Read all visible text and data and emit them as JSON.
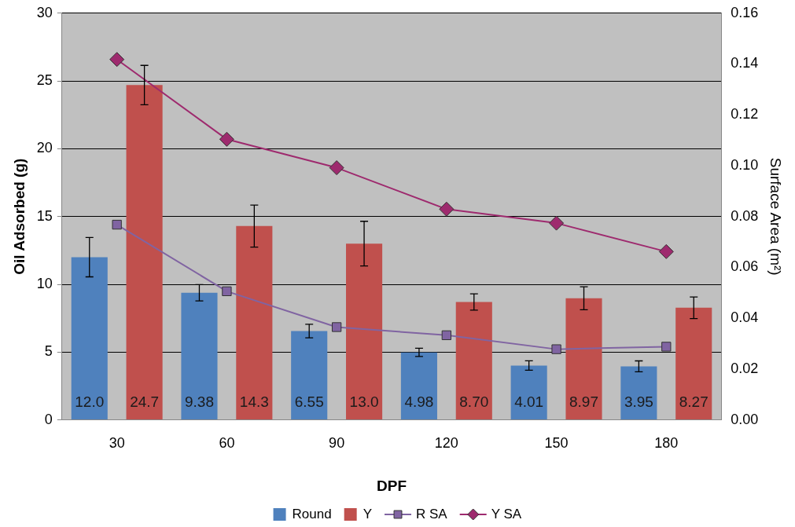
{
  "chart_data": {
    "type": "bar",
    "xlabel": "DPF",
    "ylabel": "Oil Adsorbed (g)",
    "y2label": "Surface Area (m²)",
    "categories": [
      "30",
      "60",
      "90",
      "120",
      "150",
      "180"
    ],
    "series": [
      {
        "name": "Round",
        "color": "#4f81bd",
        "values": [
          12.0,
          9.38,
          6.55,
          4.98,
          4.01,
          3.95
        ],
        "errors": [
          1.45,
          0.6,
          0.5,
          0.3,
          0.35,
          0.4
        ],
        "value_labels": [
          "12.0",
          "9.38",
          "6.55",
          "4.98",
          "4.01",
          "3.95"
        ]
      },
      {
        "name": "Y",
        "color": "#c0504d",
        "values": [
          24.7,
          14.3,
          13.0,
          8.7,
          8.97,
          8.27
        ],
        "errors": [
          1.45,
          1.55,
          1.65,
          0.6,
          0.85,
          0.8
        ],
        "value_labels": [
          "24.7",
          "14.3",
          "13.0",
          "8.70",
          "8.97",
          "8.27"
        ]
      },
      {
        "name": "R SA",
        "type": "line",
        "axis": "y2",
        "color": "#8064a2",
        "marker": "square",
        "values": [
          0.0768,
          0.0506,
          0.0365,
          0.0333,
          0.0278,
          0.0288
        ]
      },
      {
        "name": "Y SA",
        "type": "line",
        "axis": "y2",
        "color": "#9e2a6e",
        "marker": "diamond",
        "values": [
          0.1418,
          0.1104,
          0.0992,
          0.0829,
          0.0774,
          0.0662
        ]
      }
    ],
    "ylim": [
      0,
      30
    ],
    "yticks": [
      0,
      5,
      10,
      15,
      20,
      25,
      30
    ],
    "y2lim": [
      0,
      0.16
    ],
    "y2ticks": [
      {
        "value": 0,
        "label": "0.00"
      },
      {
        "value": 0.02,
        "label": "0.02"
      },
      {
        "value": 0.04,
        "label": "0.04"
      },
      {
        "value": 0.06,
        "label": "0.06"
      },
      {
        "value": 0.08,
        "label": "0.08"
      },
      {
        "value": 0.1,
        "label": "0.10"
      },
      {
        "value": 0.12,
        "label": "0.12"
      },
      {
        "value": 0.14,
        "label": "0.14"
      },
      {
        "value": 0.16,
        "label": "0.16"
      }
    ],
    "grid": "y",
    "legend": "bottom"
  }
}
